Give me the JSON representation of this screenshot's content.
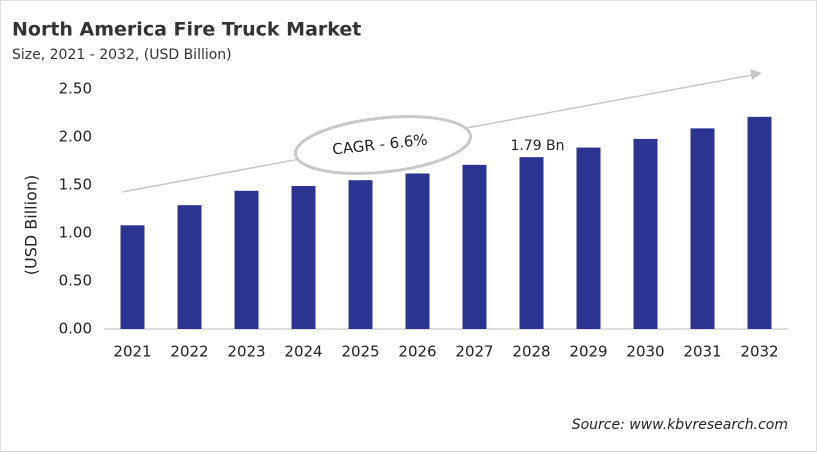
{
  "chart_data": {
    "type": "bar",
    "title": "North America Fire Truck Market",
    "subtitle": "Size, 2021 - 2032, (USD Billion)",
    "y_label": "(USD Billion)",
    "annotation": "CAGR - 6.6%",
    "source": "Source: www.kbvresearch.com",
    "categories": [
      "2021",
      "2022",
      "2023",
      "2024",
      "2025",
      "2026",
      "2027",
      "2028",
      "2029",
      "2030",
      "2031",
      "2032"
    ],
    "values": [
      1.08,
      1.29,
      1.44,
      1.49,
      1.55,
      1.62,
      1.71,
      1.79,
      1.89,
      1.98,
      2.09,
      2.21
    ],
    "value_labels": [
      null,
      null,
      null,
      null,
      null,
      null,
      null,
      "1.79 Bn",
      null,
      null,
      null,
      null
    ],
    "color": "#2b3491",
    "ylim": [
      0,
      2.5
    ],
    "yticks": [
      {
        "value": 0,
        "label": "0.00"
      },
      {
        "value": 0.5,
        "label": "0.50"
      },
      {
        "value": 1,
        "label": "1.00"
      },
      {
        "value": 1.5,
        "label": "1.50"
      },
      {
        "value": 2,
        "label": "2.00"
      },
      {
        "value": 2.5,
        "label": "2.50"
      }
    ],
    "grid": false
  }
}
